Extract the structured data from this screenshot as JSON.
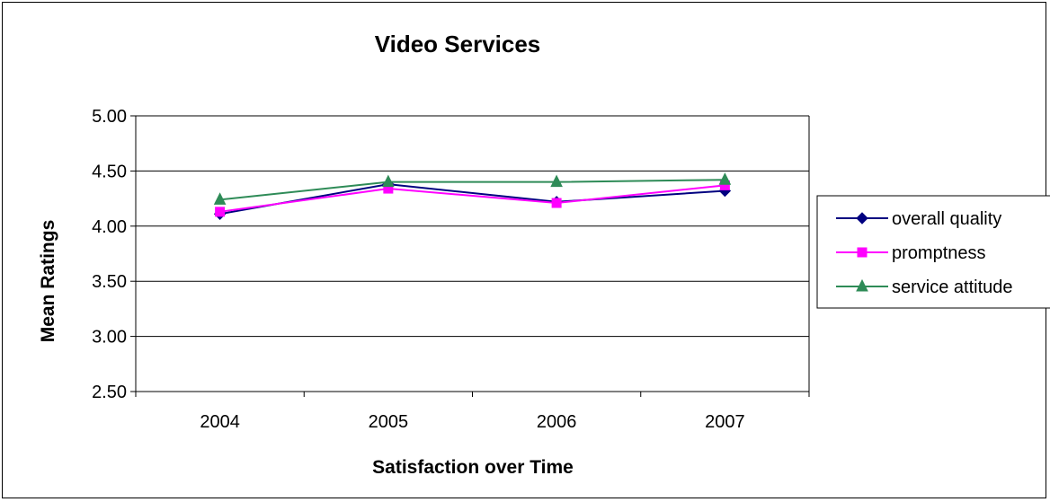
{
  "chart_data": {
    "type": "line",
    "title": "Video Services",
    "xlabel": "Satisfaction over Time",
    "ylabel": "Mean Ratings",
    "categories": [
      "2004",
      "2005",
      "2006",
      "2007"
    ],
    "ylim": [
      2.5,
      5.0
    ],
    "yticks": [
      "2.50",
      "3.00",
      "3.50",
      "4.00",
      "4.50",
      "5.00"
    ],
    "grid": true,
    "legend_position": "right",
    "series": [
      {
        "name": "overall quality",
        "values": [
          4.11,
          4.38,
          4.22,
          4.32
        ],
        "color": "#000080",
        "marker": "diamond"
      },
      {
        "name": "promptness",
        "values": [
          4.13,
          4.34,
          4.21,
          4.37
        ],
        "color": "#FF00FF",
        "marker": "square"
      },
      {
        "name": "service attitude",
        "values": [
          4.24,
          4.4,
          4.4,
          4.42
        ],
        "color": "#2E8B57",
        "marker": "triangle"
      }
    ]
  }
}
